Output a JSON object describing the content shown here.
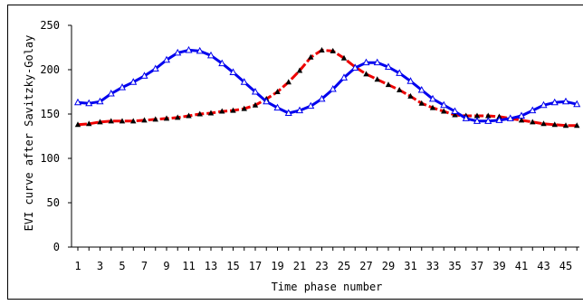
{
  "chart_data": {
    "type": "line",
    "xlabel": "Time phase number",
    "ylabel": "EVI curve after Savitzky-Golay",
    "xlim": [
      1,
      46
    ],
    "ylim": [
      0,
      250
    ],
    "x_ticks": [
      1,
      3,
      5,
      7,
      9,
      11,
      13,
      15,
      17,
      19,
      21,
      23,
      25,
      27,
      29,
      31,
      33,
      35,
      37,
      39,
      41,
      43,
      45
    ],
    "y_ticks": [
      0,
      50,
      100,
      150,
      200,
      250
    ],
    "series": [
      {
        "color": "#0000ee",
        "marker": "open-triangle",
        "values": [
          163,
          162,
          164,
          173,
          180,
          186,
          193,
          201,
          211,
          219,
          222,
          221,
          216,
          207,
          197,
          186,
          175,
          164,
          157,
          151,
          154,
          159,
          167,
          178,
          191,
          202,
          208,
          208,
          203,
          196,
          187,
          177,
          167,
          160,
          153,
          145,
          142,
          142,
          143,
          145,
          148,
          154,
          160,
          163,
          164,
          161
        ]
      },
      {
        "color": "#ee0000",
        "marker": "black-triangle",
        "values": [
          138,
          139,
          141,
          142,
          142,
          142,
          143,
          144,
          145,
          146,
          148,
          150,
          151,
          153,
          154,
          156,
          160,
          167,
          175,
          186,
          199,
          214,
          222,
          221,
          213,
          203,
          195,
          189,
          183,
          177,
          170,
          162,
          157,
          153,
          149,
          148,
          148,
          148,
          147,
          145,
          143,
          141,
          139,
          138,
          137,
          137
        ]
      }
    ]
  }
}
